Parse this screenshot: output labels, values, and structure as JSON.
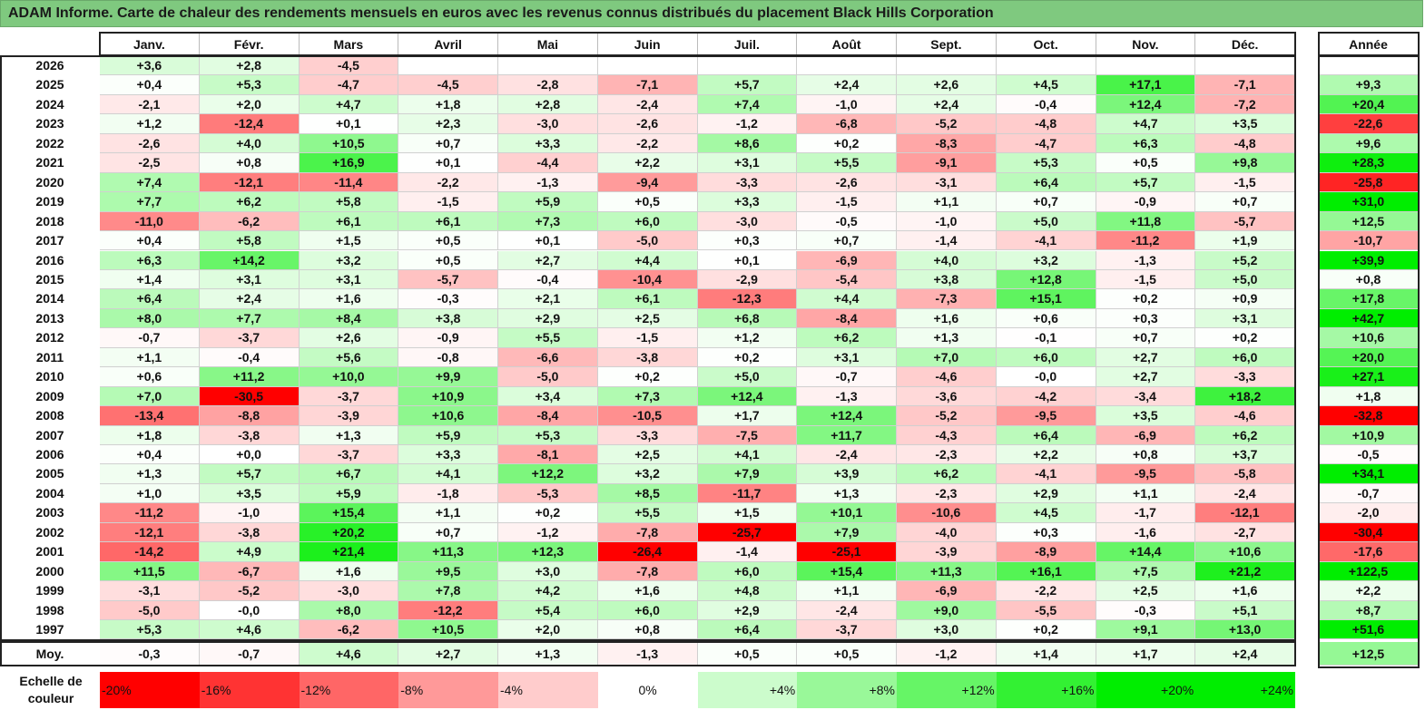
{
  "title": "ADAM Informe. Carte de chaleur des rendements mensuels en euros avec les revenus connus distribués du placement Black Hills Corporation",
  "chart_data": {
    "type": "heatmap",
    "columns": [
      "Janv.",
      "Févr.",
      "Mars",
      "Avril",
      "Mai",
      "Juin",
      "Juil.",
      "Août",
      "Sept.",
      "Oct.",
      "Nov.",
      "Déc."
    ],
    "year_column": "Année",
    "average_label": "Moy.",
    "rows": [
      {
        "year": "2026",
        "values": [
          "+3,6",
          "+2,8",
          "-4,5",
          null,
          null,
          null,
          null,
          null,
          null,
          null,
          null,
          null
        ],
        "annual": null
      },
      {
        "year": "2025",
        "values": [
          "+0,4",
          "+5,3",
          "-4,7",
          "-4,5",
          "-2,8",
          "-7,1",
          "+5,7",
          "+2,4",
          "+2,6",
          "+4,5",
          "+17,1",
          "-7,1"
        ],
        "annual": "+9,3"
      },
      {
        "year": "2024",
        "values": [
          "-2,1",
          "+2,0",
          "+4,7",
          "+1,8",
          "+2,8",
          "-2,4",
          "+7,4",
          "-1,0",
          "+2,4",
          "-0,4",
          "+12,4",
          "-7,2"
        ],
        "annual": "+20,4"
      },
      {
        "year": "2023",
        "values": [
          "+1,2",
          "-12,4",
          "+0,1",
          "+2,3",
          "-3,0",
          "-2,6",
          "-1,2",
          "-6,8",
          "-5,2",
          "-4,8",
          "+4,7",
          "+3,5"
        ],
        "annual": "-22,6"
      },
      {
        "year": "2022",
        "values": [
          "-2,6",
          "+4,0",
          "+10,5",
          "+0,7",
          "+3,3",
          "-2,2",
          "+8,6",
          "+0,2",
          "-8,3",
          "-4,7",
          "+6,3",
          "-4,8"
        ],
        "annual": "+9,6"
      },
      {
        "year": "2021",
        "values": [
          "-2,5",
          "+0,8",
          "+16,9",
          "+0,1",
          "-4,4",
          "+2,2",
          "+3,1",
          "+5,5",
          "-9,1",
          "+5,3",
          "+0,5",
          "+9,8"
        ],
        "annual": "+28,3"
      },
      {
        "year": "2020",
        "values": [
          "+7,4",
          "-12,1",
          "-11,4",
          "-2,2",
          "-1,3",
          "-9,4",
          "-3,3",
          "-2,6",
          "-3,1",
          "+6,4",
          "+5,7",
          "-1,5"
        ],
        "annual": "-25,8"
      },
      {
        "year": "2019",
        "values": [
          "+7,7",
          "+6,2",
          "+5,8",
          "-1,5",
          "+5,9",
          "+0,5",
          "+3,3",
          "-1,5",
          "+1,1",
          "+0,7",
          "-0,9",
          "+0,7"
        ],
        "annual": "+31,0"
      },
      {
        "year": "2018",
        "values": [
          "-11,0",
          "-6,2",
          "+6,1",
          "+6,1",
          "+7,3",
          "+6,0",
          "-3,0",
          "-0,5",
          "-1,0",
          "+5,0",
          "+11,8",
          "-5,7"
        ],
        "annual": "+12,5"
      },
      {
        "year": "2017",
        "values": [
          "+0,4",
          "+5,8",
          "+1,5",
          "+0,5",
          "+0,1",
          "-5,0",
          "+0,3",
          "+0,7",
          "-1,4",
          "-4,1",
          "-11,2",
          "+1,9"
        ],
        "annual": "-10,7"
      },
      {
        "year": "2016",
        "values": [
          "+6,3",
          "+14,2",
          "+3,2",
          "+0,5",
          "+2,7",
          "+4,4",
          "+0,1",
          "-6,9",
          "+4,0",
          "+3,2",
          "-1,3",
          "+5,2"
        ],
        "annual": "+39,9"
      },
      {
        "year": "2015",
        "values": [
          "+1,4",
          "+3,1",
          "+3,1",
          "-5,7",
          "-0,4",
          "-10,4",
          "-2,9",
          "-5,4",
          "+3,8",
          "+12,8",
          "-1,5",
          "+5,0"
        ],
        "annual": "+0,8"
      },
      {
        "year": "2014",
        "values": [
          "+6,4",
          "+2,4",
          "+1,6",
          "-0,3",
          "+2,1",
          "+6,1",
          "-12,3",
          "+4,4",
          "-7,3",
          "+15,1",
          "+0,2",
          "+0,9"
        ],
        "annual": "+17,8"
      },
      {
        "year": "2013",
        "values": [
          "+8,0",
          "+7,7",
          "+8,4",
          "+3,8",
          "+2,9",
          "+2,5",
          "+6,8",
          "-8,4",
          "+1,6",
          "+0,6",
          "+0,3",
          "+3,1"
        ],
        "annual": "+42,7"
      },
      {
        "year": "2012",
        "values": [
          "-0,7",
          "-3,7",
          "+2,6",
          "-0,9",
          "+5,5",
          "-1,5",
          "+1,2",
          "+6,2",
          "+1,3",
          "-0,1",
          "+0,7",
          "+0,2"
        ],
        "annual": "+10,6"
      },
      {
        "year": "2011",
        "values": [
          "+1,1",
          "-0,4",
          "+5,6",
          "-0,8",
          "-6,6",
          "-3,8",
          "+0,2",
          "+3,1",
          "+7,0",
          "+6,0",
          "+2,7",
          "+6,0"
        ],
        "annual": "+20,0"
      },
      {
        "year": "2010",
        "values": [
          "+0,6",
          "+11,2",
          "+10,0",
          "+9,9",
          "-5,0",
          "+0,2",
          "+5,0",
          "-0,7",
          "-4,6",
          "-0,0",
          "+2,7",
          "-3,3"
        ],
        "annual": "+27,1"
      },
      {
        "year": "2009",
        "values": [
          "+7,0",
          "-30,5",
          "-3,7",
          "+10,9",
          "+3,4",
          "+7,3",
          "+12,4",
          "-1,3",
          "-3,6",
          "-4,2",
          "-3,4",
          "+18,2"
        ],
        "annual": "+1,8"
      },
      {
        "year": "2008",
        "values": [
          "-13,4",
          "-8,8",
          "-3,9",
          "+10,6",
          "-8,4",
          "-10,5",
          "+1,7",
          "+12,4",
          "-5,2",
          "-9,5",
          "+3,5",
          "-4,6"
        ],
        "annual": "-32,8"
      },
      {
        "year": "2007",
        "values": [
          "+1,8",
          "-3,8",
          "+1,3",
          "+5,9",
          "+5,3",
          "-3,3",
          "-7,5",
          "+11,7",
          "-4,3",
          "+6,4",
          "-6,9",
          "+6,2"
        ],
        "annual": "+10,9"
      },
      {
        "year": "2006",
        "values": [
          "+0,4",
          "+0,0",
          "-3,7",
          "+3,3",
          "-8,1",
          "+2,5",
          "+4,1",
          "-2,4",
          "-2,3",
          "+2,2",
          "+0,8",
          "+3,7"
        ],
        "annual": "-0,5"
      },
      {
        "year": "2005",
        "values": [
          "+1,3",
          "+5,7",
          "+6,7",
          "+4,1",
          "+12,2",
          "+3,2",
          "+7,9",
          "+3,9",
          "+6,2",
          "-4,1",
          "-9,5",
          "-5,8"
        ],
        "annual": "+34,1"
      },
      {
        "year": "2004",
        "values": [
          "+1,0",
          "+3,5",
          "+5,9",
          "-1,8",
          "-5,3",
          "+8,5",
          "-11,7",
          "+1,3",
          "-2,3",
          "+2,9",
          "+1,1",
          "-2,4"
        ],
        "annual": "-0,7"
      },
      {
        "year": "2003",
        "values": [
          "-11,2",
          "-1,0",
          "+15,4",
          "+1,1",
          "+0,2",
          "+5,5",
          "+1,5",
          "+10,1",
          "-10,6",
          "+4,5",
          "-1,7",
          "-12,1"
        ],
        "annual": "-2,0"
      },
      {
        "year": "2002",
        "values": [
          "-12,1",
          "-3,8",
          "+20,2",
          "+0,7",
          "-1,2",
          "-7,8",
          "-25,7",
          "+7,9",
          "-4,0",
          "+0,3",
          "-1,6",
          "-2,7"
        ],
        "annual": "-30,4"
      },
      {
        "year": "2001",
        "values": [
          "-14,2",
          "+4,9",
          "+21,4",
          "+11,3",
          "+12,3",
          "-26,4",
          "-1,4",
          "-25,1",
          "-3,9",
          "-8,9",
          "+14,4",
          "+10,6"
        ],
        "annual": "-17,6"
      },
      {
        "year": "2000",
        "values": [
          "+11,5",
          "-6,7",
          "+1,6",
          "+9,5",
          "+3,0",
          "-7,8",
          "+6,0",
          "+15,4",
          "+11,3",
          "+16,1",
          "+7,5",
          "+21,2"
        ],
        "annual": "+122,5"
      },
      {
        "year": "1999",
        "values": [
          "-3,1",
          "-5,2",
          "-3,0",
          "+7,8",
          "+4,2",
          "+1,6",
          "+4,8",
          "+1,1",
          "-6,9",
          "-2,2",
          "+2,5",
          "+1,6"
        ],
        "annual": "+2,2"
      },
      {
        "year": "1998",
        "values": [
          "-5,0",
          "-0,0",
          "+8,0",
          "-12,2",
          "+5,4",
          "+6,0",
          "+2,9",
          "-2,4",
          "+9,0",
          "-5,5",
          "-0,3",
          "+5,1"
        ],
        "annual": "+8,7"
      },
      {
        "year": "1997",
        "values": [
          "+5,3",
          "+4,6",
          "-6,2",
          "+10,5",
          "+2,0",
          "+0,8",
          "+6,4",
          "-3,7",
          "+3,0",
          "+0,2",
          "+9,1",
          "+13,0"
        ],
        "annual": "+51,6"
      }
    ],
    "average": {
      "values": [
        "-0,3",
        "-0,7",
        "+4,6",
        "+2,7",
        "+1,3",
        "-1,3",
        "+0,5",
        "+0,5",
        "-1,2",
        "+1,4",
        "+1,7",
        "+2,4"
      ],
      "annual": "+12,5"
    },
    "scale_title": "Echelle de couleur",
    "scale_labels": [
      "-20%",
      "-16%",
      "-12%",
      "-8%",
      "-4%",
      "0%",
      "+4%",
      "+8%",
      "+12%",
      "+16%",
      "+20%",
      "+24%"
    ],
    "colors": {
      "negative_max": "#ff0000",
      "neutral": "#ffffff",
      "positive_max": "#00ee00",
      "title_bg": "#7fc97f"
    }
  }
}
